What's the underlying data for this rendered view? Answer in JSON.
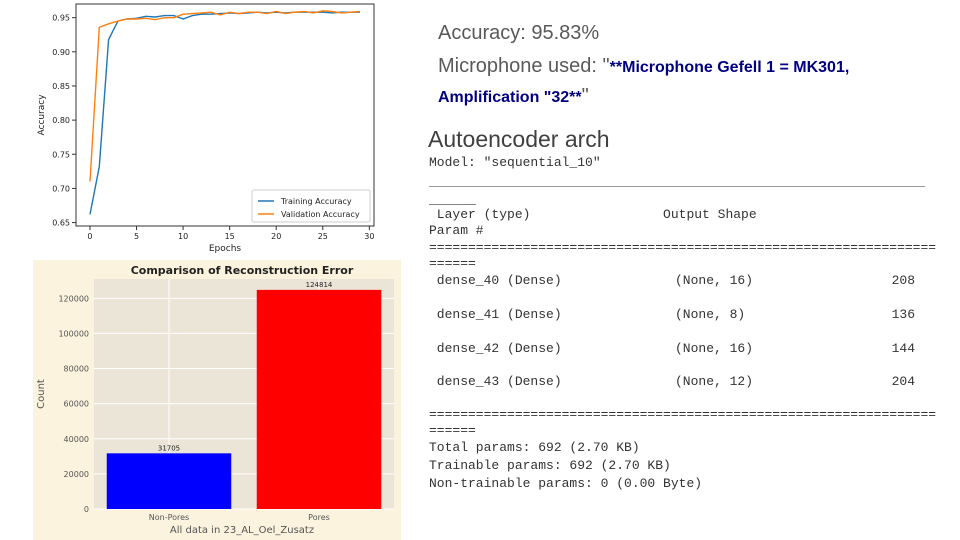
{
  "chart_data": [
    {
      "type": "line",
      "title": "",
      "xlabel": "Epochs",
      "ylabel": "Accuracy",
      "xlim": [
        -1.5,
        30.5
      ],
      "ylim": [
        0.645,
        0.97
      ],
      "xticks": [
        0,
        5,
        10,
        15,
        20,
        25,
        30
      ],
      "yticks": [
        0.65,
        0.7,
        0.75,
        0.8,
        0.85,
        0.9,
        0.95
      ],
      "grid": false,
      "legend": "bottom-right",
      "x": [
        0,
        1,
        2,
        3,
        4,
        5,
        6,
        7,
        8,
        9,
        10,
        11,
        12,
        13,
        14,
        15,
        16,
        17,
        18,
        19,
        20,
        21,
        22,
        23,
        24,
        25,
        26,
        27,
        28,
        29
      ],
      "series": [
        {
          "name": "Training Accuracy",
          "color": "#1f77b4",
          "values": [
            0.662,
            0.732,
            0.918,
            0.945,
            0.948,
            0.949,
            0.952,
            0.951,
            0.953,
            0.953,
            0.948,
            0.953,
            0.955,
            0.955,
            0.956,
            0.957,
            0.956,
            0.957,
            0.958,
            0.957,
            0.958,
            0.957,
            0.958,
            0.958,
            0.958,
            0.958,
            0.957,
            0.958,
            0.958,
            0.958
          ]
        },
        {
          "name": "Validation Accuracy",
          "color": "#ff7f0e",
          "values": [
            0.71,
            0.936,
            0.941,
            0.945,
            0.948,
            0.948,
            0.949,
            0.947,
            0.95,
            0.95,
            0.955,
            0.956,
            0.957,
            0.958,
            0.954,
            0.958,
            0.956,
            0.958,
            0.958,
            0.956,
            0.959,
            0.956,
            0.958,
            0.959,
            0.957,
            0.96,
            0.959,
            0.957,
            0.958,
            0.959
          ]
        }
      ]
    },
    {
      "type": "bar",
      "title": "Comparison of Reconstruction Error",
      "xlabel": "All data in 23_AL_Oel_Zusatz",
      "ylabel": "Count",
      "categories": [
        "Non-Pores",
        "Pores"
      ],
      "values": [
        31705,
        124814
      ],
      "colors": [
        "#0000ff",
        "#ff0000"
      ],
      "ylim": [
        0,
        131000
      ],
      "yticks": [
        0,
        20000,
        40000,
        60000,
        80000,
        100000,
        120000
      ],
      "grid": true,
      "plot_background": "#ebe5d8",
      "figure_background": "#fbf3de"
    }
  ],
  "info": {
    "accuracy": "Accuracy: 95.83%",
    "mic_label": "Microphone used: ",
    "mic_quote_open": "\"",
    "mic_value": "**Microphone Gefell 1 = MK301, Amplification \"32**",
    "mic_quote_close": "\""
  },
  "arch": {
    "title": "Autoencoder arch",
    "model_line": "Model: \"sequential_10\"",
    "rule_short": "______",
    "header": " Layer (type)                 Output Shape",
    "header2": "Param #",
    "eq_rule": "=================================================================",
    "eq_tail": "======",
    "layers": [
      {
        "name": " dense_40 (Dense)",
        "shape": "(None, 16)",
        "params": "208"
      },
      {
        "name": " dense_41 (Dense)",
        "shape": "(None, 8)",
        "params": "136"
      },
      {
        "name": " dense_42 (Dense)",
        "shape": "(None, 16)",
        "params": "144"
      },
      {
        "name": " dense_43 (Dense)",
        "shape": "(None, 12)",
        "params": "204"
      }
    ],
    "total": "Total params: 692 (2.70 KB)",
    "trainable": "Trainable params: 692 (2.70 KB)",
    "non_trainable": "Non-trainable params: 0 (0.00 Byte)"
  }
}
